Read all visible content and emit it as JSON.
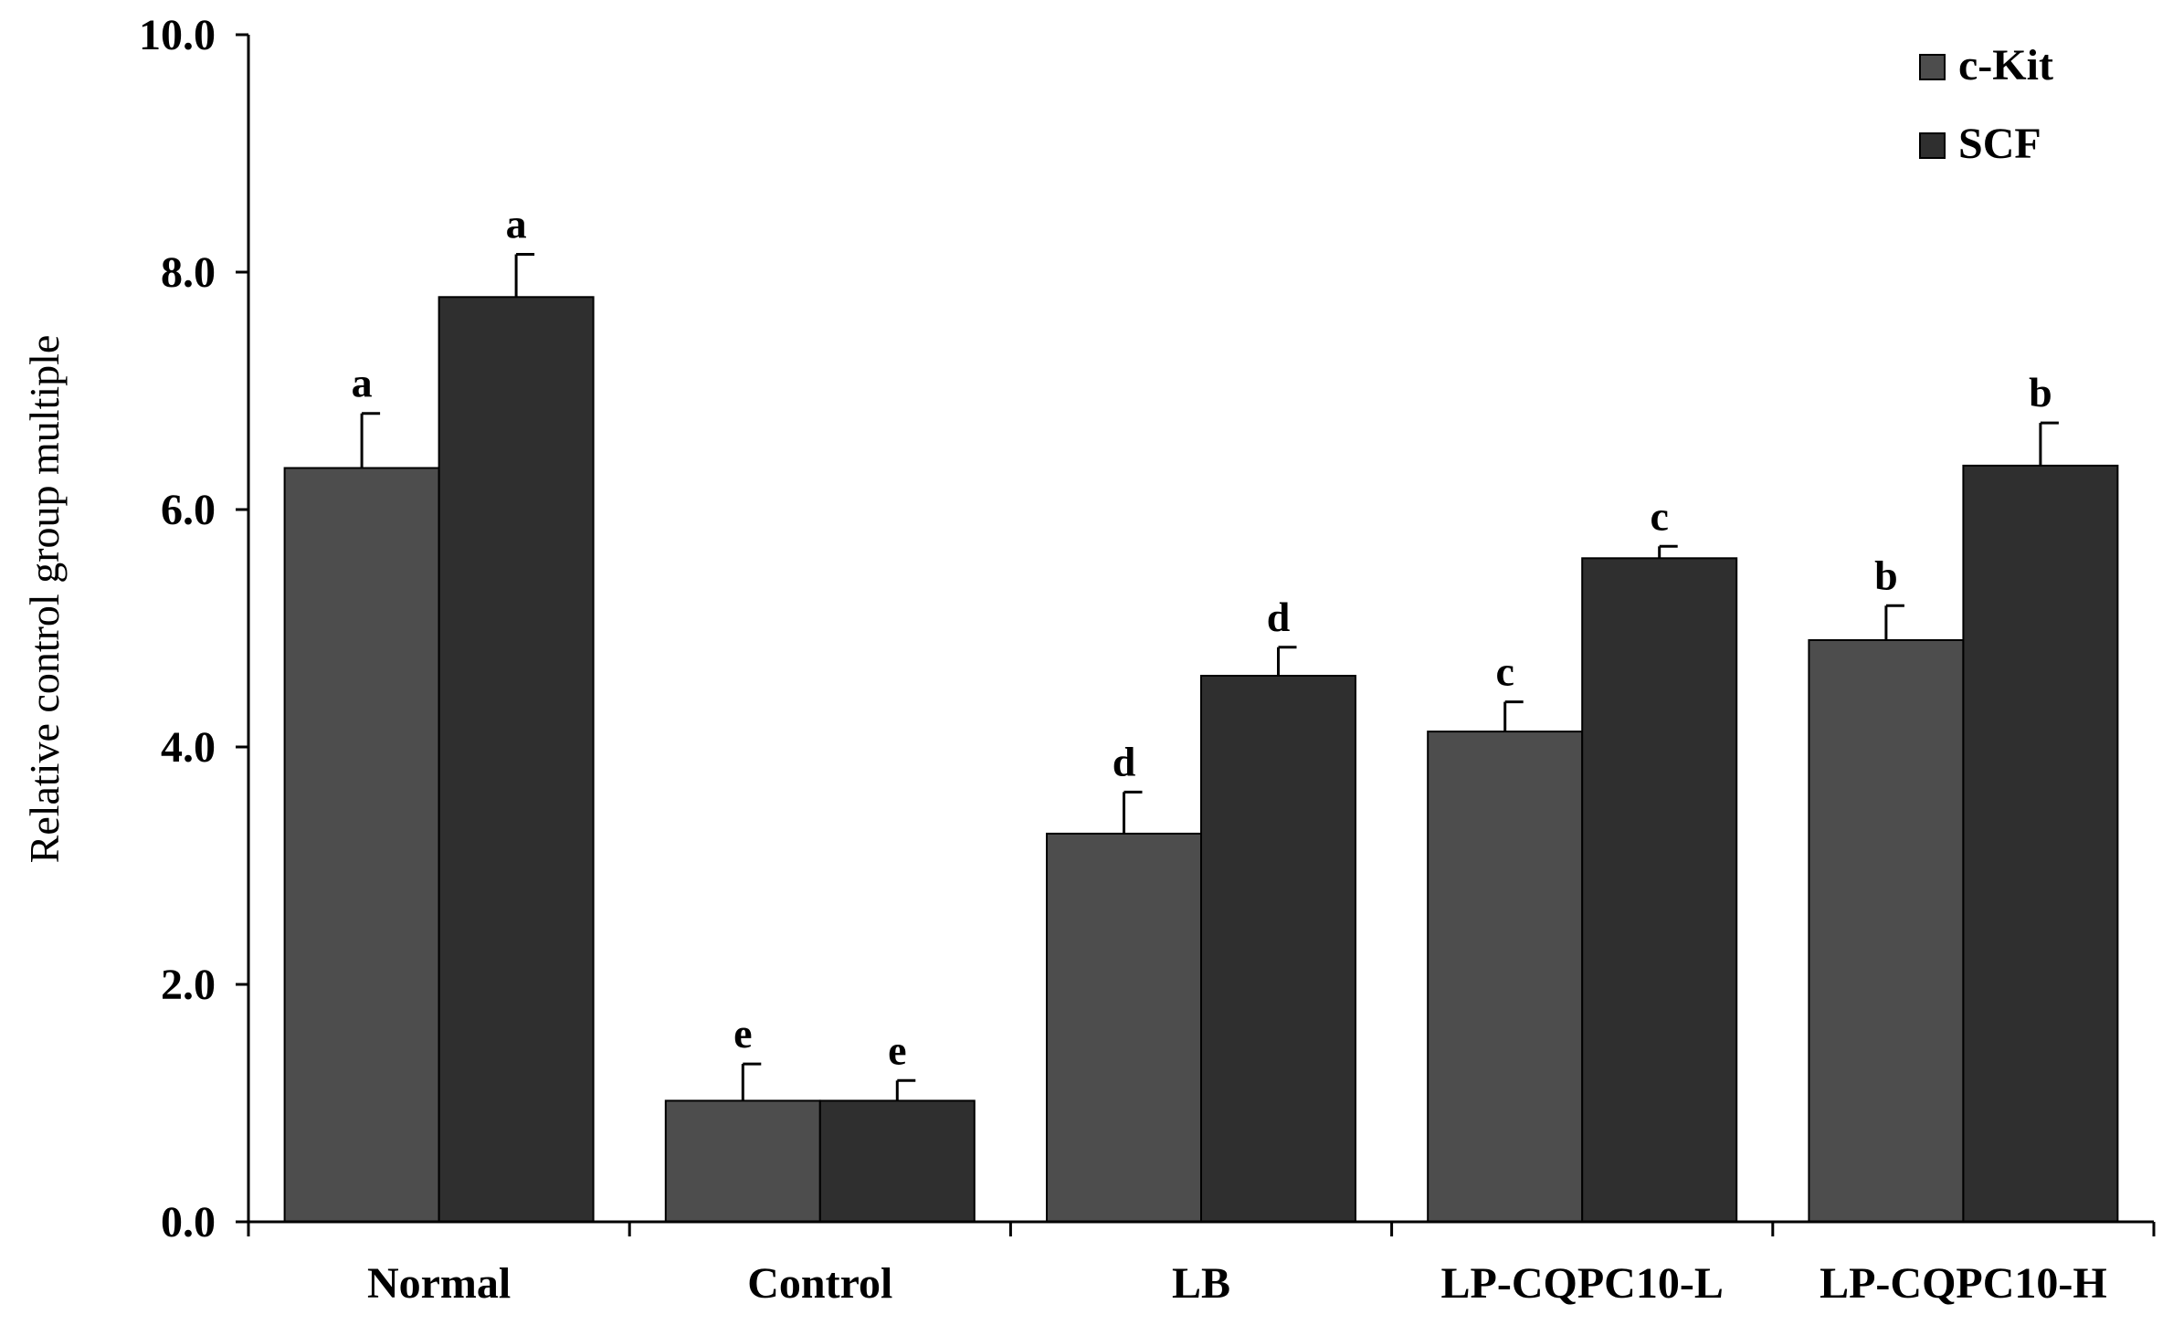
{
  "chart_data": {
    "type": "bar",
    "title": "",
    "xlabel": "",
    "ylabel": "Relative control group multiple",
    "ylim": [
      0,
      10
    ],
    "yticks": [
      "0.0",
      "2.0",
      "4.0",
      "6.0",
      "8.0",
      "10.0"
    ],
    "grid": false,
    "legend_position": "top-right",
    "categories": [
      "Normal",
      "Control",
      "LB",
      "LP-CQPC10-L",
      "LP-CQPC10-H"
    ],
    "series": [
      {
        "name": "c-Kit",
        "color": "#4d4d4d",
        "values": [
          6.35,
          1.02,
          3.27,
          4.13,
          4.9
        ],
        "errors": [
          0.46,
          0.31,
          0.35,
          0.25,
          0.29
        ],
        "significance": [
          "a",
          "e",
          "d",
          "c",
          "b"
        ]
      },
      {
        "name": "SCF",
        "color": "#2f2f2f",
        "values": [
          7.79,
          1.02,
          4.6,
          5.59,
          6.37
        ],
        "errors": [
          0.36,
          0.17,
          0.24,
          0.1,
          0.36
        ],
        "significance": [
          "a",
          "e",
          "d",
          "c",
          "b"
        ]
      }
    ]
  }
}
